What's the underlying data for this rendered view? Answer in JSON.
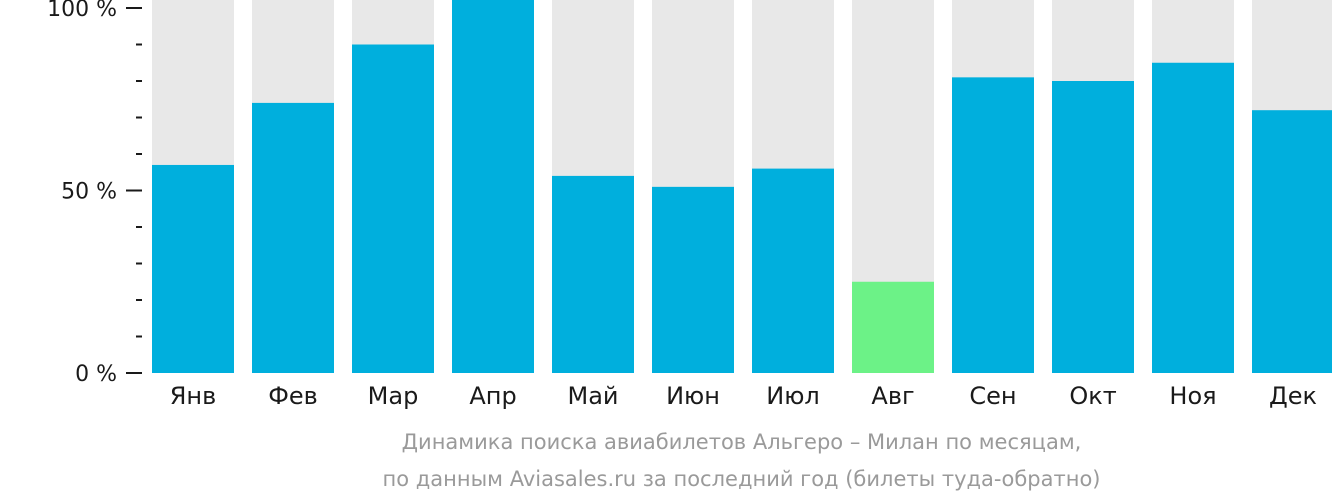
{
  "chart_data": {
    "type": "bar",
    "categories": [
      "Янв",
      "Фев",
      "Мар",
      "Апр",
      "Май",
      "Июн",
      "Июл",
      "Авг",
      "Сен",
      "Окт",
      "Ноя",
      "Дек"
    ],
    "values": [
      57,
      74,
      90,
      104,
      54,
      51,
      56,
      25,
      81,
      80,
      85,
      72
    ],
    "highlight_index": 7,
    "ylim": [
      0,
      100
    ],
    "y_ticks": [
      {
        "value": 0,
        "label": "0 %"
      },
      {
        "value": 50,
        "label": "50 %"
      },
      {
        "value": 100,
        "label": "100 %"
      }
    ],
    "colors": {
      "bar": "#00afdd",
      "highlight": "#6cf287",
      "track": "#e8e8e8",
      "axis": "#1a1a1a"
    },
    "caption_lines": [
      "Динамика поиска авиабилетов Альгеро – Милан по месяцам,",
      "по данным Aviasales.ru за последний год (билеты туда-обратно)"
    ]
  }
}
